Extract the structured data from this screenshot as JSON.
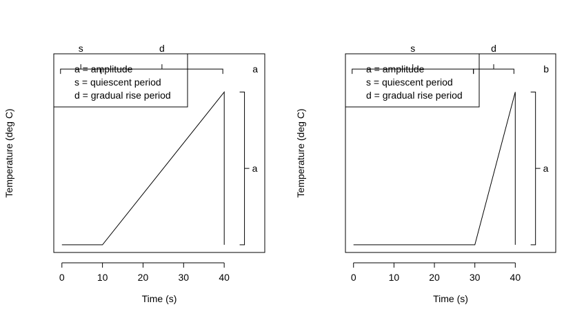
{
  "chart_data": [
    {
      "type": "line",
      "panel_label": "a",
      "xlabel": "Time (s)",
      "ylabel": "Temperature (deg C)",
      "xlim": [
        -2,
        50
      ],
      "ylim": [
        -0.05,
        1.25
      ],
      "x_ticks": [
        0,
        10,
        20,
        30,
        40
      ],
      "tick_labels": [
        "0",
        "10",
        "20",
        "30",
        "40"
      ],
      "legend": {
        "placement": "top-left",
        "lines": [
          "a = amplitude",
          "s = quiescent period",
          "d = gradual rise period"
        ]
      },
      "series": [
        {
          "x": [
            0,
            10,
            40,
            40
          ],
          "y": [
            0,
            0,
            1,
            0
          ]
        }
      ],
      "annotations": [
        {
          "label": "s",
          "orientation": "horizontal",
          "from": 0,
          "to": 10,
          "at": 1.15
        },
        {
          "label": "d",
          "orientation": "horizontal",
          "from": 10,
          "to": 40,
          "at": 1.15
        },
        {
          "label": "a",
          "orientation": "vertical",
          "from": 0,
          "to": 1,
          "at": 45
        }
      ]
    },
    {
      "type": "line",
      "panel_label": "b",
      "xlabel": "Time (s)",
      "ylabel": "Temperature (deg C)",
      "xlim": [
        -2,
        50
      ],
      "ylim": [
        -0.05,
        1.25
      ],
      "x_ticks": [
        0,
        10,
        20,
        30,
        40
      ],
      "tick_labels": [
        "0",
        "10",
        "20",
        "30",
        "40"
      ],
      "legend": {
        "placement": "top-left",
        "lines": [
          "a = amplitude",
          "s = quiescent period",
          "d = gradual rise period"
        ]
      },
      "series": [
        {
          "x": [
            0,
            30,
            40,
            40
          ],
          "y": [
            0,
            0,
            1,
            0
          ]
        }
      ],
      "annotations": [
        {
          "label": "s",
          "orientation": "horizontal",
          "from": 0,
          "to": 30,
          "at": 1.15
        },
        {
          "label": "d",
          "orientation": "horizontal",
          "from": 30,
          "to": 40,
          "at": 1.15
        },
        {
          "label": "a",
          "orientation": "vertical",
          "from": 0,
          "to": 1,
          "at": 45
        }
      ]
    }
  ]
}
